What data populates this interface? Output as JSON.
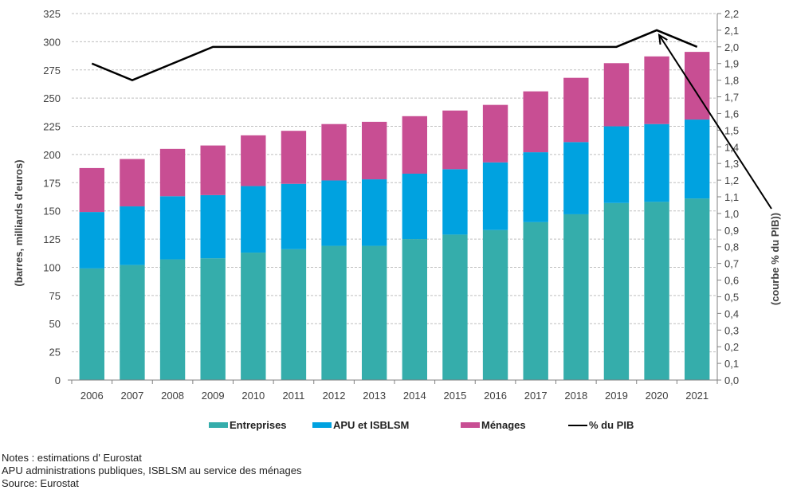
{
  "chart_data": {
    "type": "bar",
    "stacked": true,
    "title": "",
    "categories": [
      "2006",
      "2007",
      "2008",
      "2009",
      "2010",
      "2011",
      "2012",
      "2013",
      "2014",
      "2015",
      "2016",
      "2017",
      "2018",
      "2019",
      "2020",
      "2021"
    ],
    "series": [
      {
        "name": "Entreprises",
        "kind": "bar",
        "axis": "left",
        "color": "#35ADAB",
        "values": [
          99,
          102,
          107,
          108,
          113,
          116,
          119,
          119,
          125,
          129,
          133,
          140,
          147,
          157,
          158,
          161
        ]
      },
      {
        "name": "APU et ISBLSM",
        "kind": "bar",
        "axis": "left",
        "color": "#00A2E0",
        "values": [
          50,
          52,
          56,
          56,
          59,
          58,
          58,
          59,
          58,
          58,
          60,
          62,
          64,
          68,
          69,
          70
        ]
      },
      {
        "name": "Ménages",
        "kind": "bar",
        "axis": "left",
        "color": "#C84E93",
        "values": [
          39,
          42,
          42,
          44,
          45,
          47,
          50,
          51,
          51,
          52,
          51,
          54,
          57,
          56,
          60,
          60
        ]
      },
      {
        "name": "% du PIB",
        "kind": "line",
        "axis": "right",
        "color": "#000000",
        "values": [
          1.9,
          1.8,
          1.9,
          2.0,
          2.0,
          2.0,
          2.0,
          2.0,
          2.0,
          2.0,
          2.0,
          2.0,
          2.0,
          2.0,
          2.1,
          2.0
        ]
      }
    ],
    "ylabel": "(barres, milliards d'euros)",
    "y2label": "(courbe % du PIB))",
    "xlabel": "",
    "ylim": [
      0,
      325
    ],
    "y_ticks": [
      "0",
      "25",
      "50",
      "75",
      "100",
      "125",
      "150",
      "175",
      "200",
      "225",
      "250",
      "275",
      "300",
      "325"
    ],
    "y2lim": [
      0,
      2.2
    ],
    "y2_ticks": [
      "0,0",
      "0,1",
      "0,2",
      "0,3",
      "0,4",
      "0,5",
      "0,6",
      "0,7",
      "0,8",
      "0,9",
      "1,0",
      "1,1",
      "1,2",
      "1,3",
      "1,4",
      "1,5",
      "1,6",
      "1,7",
      "1,8",
      "1,9",
      "2,0",
      "2,1",
      "2,2"
    ],
    "grid": true,
    "legend_position": "bottom",
    "annotation": {
      "type": "arrow",
      "from": "y2label",
      "to_category": "2020",
      "to_series": "% du PIB"
    }
  },
  "legend": [
    {
      "label": "Entreprises",
      "color": "#35ADAB",
      "kind": "bar"
    },
    {
      "label": "APU et ISBLSM",
      "color": "#00A2E0",
      "kind": "bar"
    },
    {
      "label": "Ménages",
      "color": "#C84E93",
      "kind": "bar"
    },
    {
      "label": "% du PIB",
      "color": "#000000",
      "kind": "line"
    }
  ],
  "notes": [
    "Notes : estimations d' Eurostat",
    "APU administrations publiques,  ISBLSM au service des ménages",
    "Source: Eurostat"
  ]
}
